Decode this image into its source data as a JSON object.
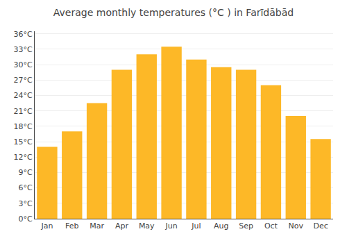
{
  "chart_data": {
    "type": "bar",
    "title": "Average monthly temperatures (°C ) in Farīdābād",
    "categories": [
      "Jan",
      "Feb",
      "Mar",
      "Apr",
      "May",
      "Jun",
      "Jul",
      "Aug",
      "Sep",
      "Oct",
      "Nov",
      "Dec"
    ],
    "values": [
      14,
      17,
      22.5,
      29,
      32,
      33.5,
      31,
      29.5,
      29,
      26,
      20,
      15.5
    ],
    "color": "#FDB827",
    "ylim": [
      0,
      36.5
    ],
    "yticks": [
      {
        "value": 0,
        "label": "0°C"
      },
      {
        "value": 3,
        "label": "3°C"
      },
      {
        "value": 6,
        "label": "6°C"
      },
      {
        "value": 9,
        "label": "9°C"
      },
      {
        "value": 12,
        "label": "12°C"
      },
      {
        "value": 15,
        "label": "15°C"
      },
      {
        "value": 18,
        "label": "18°C"
      },
      {
        "value": 21,
        "label": "21°C"
      },
      {
        "value": 24,
        "label": "24°C"
      },
      {
        "value": 27,
        "label": "27°C"
      },
      {
        "value": 30,
        "label": "30°C"
      },
      {
        "value": 33,
        "label": "33°C"
      },
      {
        "value": 36,
        "label": "36°C"
      }
    ],
    "grid": true
  }
}
